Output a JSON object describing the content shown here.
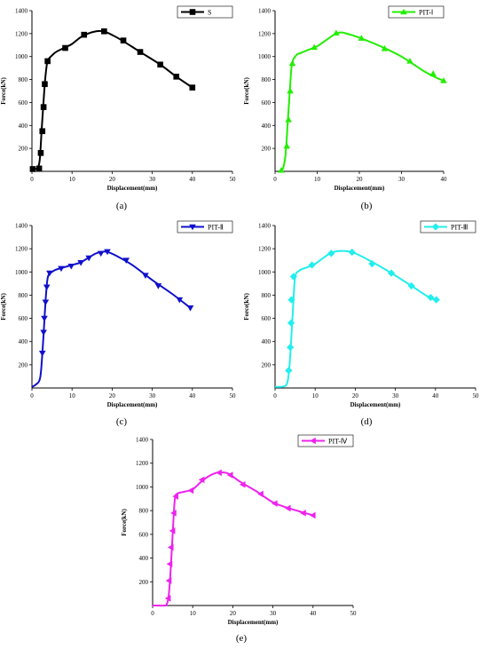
{
  "chart_data": [
    {
      "type": "line",
      "panel_label": "(a)",
      "xlabel": "Displacement(mm)",
      "ylabel": "Force(kN)",
      "xlim": [
        0,
        50
      ],
      "ylim": [
        0,
        1400
      ],
      "xticks": [
        0,
        10,
        20,
        30,
        40,
        50
      ],
      "yticks": [
        200,
        400,
        600,
        800,
        1000,
        1200,
        1400
      ],
      "legend_position": "top-right",
      "series": [
        {
          "name": "S",
          "color": "#000000",
          "marker": "square",
          "curve": [
            [
              0,
              20
            ],
            [
              1,
              22
            ],
            [
              1.6,
              40
            ],
            [
              2,
              120
            ],
            [
              2.4,
              350
            ],
            [
              2.8,
              560
            ],
            [
              3.2,
              760
            ],
            [
              3.6,
              900
            ],
            [
              4,
              970
            ],
            [
              5,
              1010
            ],
            [
              6,
              1040
            ],
            [
              8,
              1075
            ],
            [
              10,
              1110
            ],
            [
              12,
              1165
            ],
            [
              14,
              1200
            ],
            [
              16,
              1220
            ],
            [
              17.5,
              1222
            ],
            [
              19,
              1205
            ],
            [
              22,
              1150
            ],
            [
              27,
              1040
            ],
            [
              32,
              930
            ],
            [
              36,
              825
            ],
            [
              40,
              730
            ]
          ],
          "markers": [
            [
              0.2,
              20
            ],
            [
              1.8,
              25
            ],
            [
              2.2,
              160
            ],
            [
              2.6,
              350
            ],
            [
              2.9,
              560
            ],
            [
              3.2,
              760
            ],
            [
              3.9,
              960
            ],
            [
              8.3,
              1075
            ],
            [
              13,
              1190
            ],
            [
              18,
              1220
            ],
            [
              22.8,
              1140
            ],
            [
              27,
              1040
            ],
            [
              32,
              930
            ],
            [
              36,
              825
            ],
            [
              40,
              730
            ]
          ]
        }
      ]
    },
    {
      "type": "line",
      "panel_label": "(b)",
      "xlabel": "Displacement(mm)",
      "ylabel": "Force(kN)",
      "xlim": [
        0,
        40
      ],
      "ylim": [
        0,
        1400
      ],
      "xticks": [
        0,
        10,
        20,
        30,
        40
      ],
      "yticks": [
        200,
        400,
        600,
        800,
        1000,
        1200,
        1400
      ],
      "legend_position": "top-right",
      "series": [
        {
          "name": "PIT-Ⅰ",
          "color": "#22ee00",
          "marker": "triangle-up",
          "curve": [
            [
              1,
              5
            ],
            [
              1.5,
              10
            ],
            [
              2,
              40
            ],
            [
              2.5,
              150
            ],
            [
              3,
              420
            ],
            [
              3.5,
              700
            ],
            [
              4,
              930
            ],
            [
              5,
              1010
            ],
            [
              6,
              1030
            ],
            [
              8,
              1060
            ],
            [
              10,
              1090
            ],
            [
              12,
              1140
            ],
            [
              14,
              1190
            ],
            [
              15.5,
              1210
            ],
            [
              17,
              1200
            ],
            [
              20,
              1165
            ],
            [
              25,
              1090
            ],
            [
              30,
              1000
            ],
            [
              35,
              880
            ],
            [
              38,
              820
            ],
            [
              40,
              790
            ]
          ],
          "markers": [
            [
              1.5,
              10
            ],
            [
              2.8,
              220
            ],
            [
              3.2,
              450
            ],
            [
              3.6,
              700
            ],
            [
              4.1,
              940
            ],
            [
              9.3,
              1080
            ],
            [
              14.5,
              1205
            ],
            [
              20.5,
              1160
            ],
            [
              26,
              1070
            ],
            [
              32,
              960
            ],
            [
              37.5,
              850
            ],
            [
              40,
              790
            ]
          ]
        }
      ]
    },
    {
      "type": "line",
      "panel_label": "(c)",
      "xlabel": "Displacement(mm)",
      "ylabel": "Force(kN)",
      "xlim": [
        0,
        50
      ],
      "ylim": [
        0,
        1400
      ],
      "xticks": [
        0,
        10,
        20,
        30,
        40,
        50
      ],
      "yticks": [
        200,
        400,
        600,
        800,
        1000,
        1200,
        1400
      ],
      "legend_position": "top-right",
      "series": [
        {
          "name": "PIT-Ⅱ",
          "color": "#1010cc",
          "marker": "triangle-down",
          "curve": [
            [
              0,
              10
            ],
            [
              1,
              30
            ],
            [
              2,
              80
            ],
            [
              2.5,
              250
            ],
            [
              3,
              520
            ],
            [
              3.5,
              800
            ],
            [
              4,
              960
            ],
            [
              5,
              1000
            ],
            [
              6,
              1020
            ],
            [
              8,
              1040
            ],
            [
              10,
              1060
            ],
            [
              12,
              1080
            ],
            [
              14,
              1120
            ],
            [
              16,
              1160
            ],
            [
              18,
              1175
            ],
            [
              19,
              1170
            ],
            [
              21,
              1140
            ],
            [
              25,
              1060
            ],
            [
              30,
              930
            ],
            [
              35,
              810
            ],
            [
              39.5,
              690
            ]
          ],
          "markers": [
            [
              2.6,
              300
            ],
            [
              2.9,
              480
            ],
            [
              3.1,
              600
            ],
            [
              3.4,
              740
            ],
            [
              3.7,
              870
            ],
            [
              4.4,
              990
            ],
            [
              7.3,
              1030
            ],
            [
              9.8,
              1050
            ],
            [
              12.2,
              1080
            ],
            [
              14.2,
              1120
            ],
            [
              17.2,
              1160
            ],
            [
              18.8,
              1175
            ],
            [
              23.5,
              1100
            ],
            [
              28.3,
              970
            ],
            [
              31.5,
              880
            ],
            [
              36.8,
              760
            ],
            [
              39.5,
              690
            ]
          ]
        }
      ]
    },
    {
      "type": "line",
      "panel_label": "(d)",
      "xlabel": "Displacement(mm)",
      "ylabel": "Force(kN)",
      "xlim": [
        0,
        50
      ],
      "ylim": [
        0,
        1400
      ],
      "xticks": [
        0,
        10,
        20,
        30,
        40,
        50
      ],
      "yticks": [
        200,
        400,
        600,
        800,
        1000,
        1200,
        1400
      ],
      "legend_position": "top-right",
      "series": [
        {
          "name": "PIT-Ⅲ",
          "color": "#22eeee",
          "marker": "diamond",
          "curve": [
            [
              0,
              10
            ],
            [
              2,
              12
            ],
            [
              3,
              40
            ],
            [
              3.5,
              150
            ],
            [
              4,
              400
            ],
            [
              4.5,
              700
            ],
            [
              5,
              950
            ],
            [
              6,
              1010
            ],
            [
              8,
              1040
            ],
            [
              10,
              1070
            ],
            [
              12,
              1120
            ],
            [
              14,
              1165
            ],
            [
              16,
              1180
            ],
            [
              18,
              1178
            ],
            [
              20,
              1160
            ],
            [
              24,
              1090
            ],
            [
              29,
              990
            ],
            [
              34,
              880
            ],
            [
              38,
              790
            ],
            [
              40,
              760
            ]
          ],
          "markers": [
            [
              3.4,
              150
            ],
            [
              3.8,
              350
            ],
            [
              4,
              560
            ],
            [
              4.1,
              760
            ],
            [
              4.6,
              960
            ],
            [
              9.2,
              1060
            ],
            [
              14,
              1160
            ],
            [
              19.2,
              1170
            ],
            [
              24.2,
              1070
            ],
            [
              29,
              990
            ],
            [
              34,
              880
            ],
            [
              38.8,
              780
            ],
            [
              40.2,
              760
            ]
          ]
        }
      ]
    },
    {
      "type": "line",
      "panel_label": "(e)",
      "xlabel": "Displacement(mm)",
      "ylabel": "Force(kN)",
      "xlim": [
        0,
        50
      ],
      "ylim": [
        0,
        1400
      ],
      "xticks": [
        0,
        10,
        20,
        30,
        40,
        50
      ],
      "yticks": [
        200,
        400,
        600,
        800,
        1000,
        1200,
        1400
      ],
      "legend_position": "top-right",
      "series": [
        {
          "name": "PIT-Ⅳ",
          "color": "#ee22ee",
          "marker": "triangle-left",
          "curve": [
            [
              0,
              0
            ],
            [
              3,
              0
            ],
            [
              3.5,
              10
            ],
            [
              4,
              80
            ],
            [
              4.5,
              300
            ],
            [
              5,
              600
            ],
            [
              5.5,
              880
            ],
            [
              6,
              940
            ],
            [
              8,
              960
            ],
            [
              10,
              980
            ],
            [
              12,
              1040
            ],
            [
              14,
              1090
            ],
            [
              16,
              1120
            ],
            [
              17.5,
              1122
            ],
            [
              19,
              1110
            ],
            [
              22,
              1040
            ],
            [
              26,
              960
            ],
            [
              30,
              870
            ],
            [
              34,
              820
            ],
            [
              38,
              780
            ],
            [
              40,
              760
            ]
          ],
          "markers": [
            [
              3.9,
              60
            ],
            [
              4.1,
              210
            ],
            [
              4.3,
              350
            ],
            [
              4.6,
              490
            ],
            [
              5,
              630
            ],
            [
              5.3,
              780
            ],
            [
              5.8,
              920
            ],
            [
              9.6,
              970
            ],
            [
              12.3,
              1060
            ],
            [
              16.6,
              1120
            ],
            [
              19.4,
              1100
            ],
            [
              22.5,
              1020
            ],
            [
              27,
              940
            ],
            [
              30.5,
              860
            ],
            [
              33.8,
              820
            ],
            [
              37.6,
              780
            ],
            [
              40,
              760
            ]
          ]
        }
      ]
    }
  ]
}
